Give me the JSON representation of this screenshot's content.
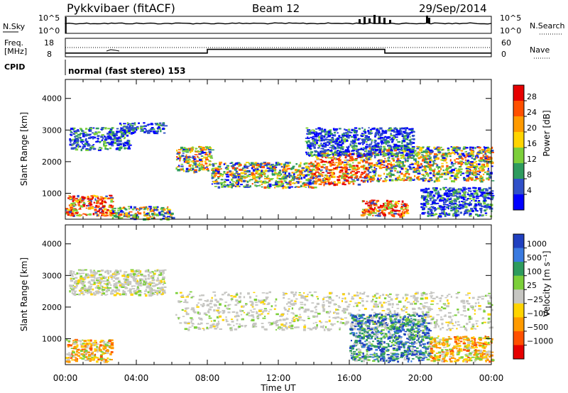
{
  "header": {
    "radar": "Pykkvibaer (fitACF)",
    "beam": "Beam 12",
    "date": "29/Sep/2014"
  },
  "nsky_panel": {
    "left_label": "N.Sky",
    "left_top_tick": "10^5",
    "left_bottom_tick": "10^0",
    "right_label": "N.Search",
    "right_top_tick": "10^5",
    "right_bottom_tick": "10^0"
  },
  "freq_panel": {
    "left_label_line1": "Freq.",
    "left_label_line2": "[MHz]",
    "left_top_tick": "18",
    "left_bottom_tick": "8",
    "right_label": "Nave",
    "right_top_tick": "60",
    "right_bottom_tick": "0"
  },
  "cpid_panel": {
    "label": "CPID",
    "text": "normal (fast stereo) 153"
  },
  "power_panel": {
    "ylabel": "Slant Range [km]",
    "cbar_label": "Power [dB]",
    "cbar_ticks": [
      "28",
      "24",
      "20",
      "16",
      "12",
      "8",
      "4"
    ],
    "cbar_colors": [
      "#e60000",
      "#ff5000",
      "#ff9a00",
      "#ffd400",
      "#7ccf3a",
      "#2e9b5e",
      "#3050c8",
      "#0000ff"
    ]
  },
  "velocity_panel": {
    "ylabel": "Slant Range [km]",
    "cbar_label": "Velocity [m s⁻¹]",
    "cbar_ticks": [
      "1000",
      "500",
      "100",
      "25",
      "−25",
      "−100",
      "−500",
      "−1000"
    ],
    "cbar_colors": [
      "#2040c0",
      "#3a7ae0",
      "#2e9b5e",
      "#7ccf3a",
      "#c6c6c2",
      "#ffd400",
      "#ff9a00",
      "#ff5000",
      "#e60000"
    ]
  },
  "y_ticks": [
    "4000",
    "3000",
    "2000",
    "1000"
  ],
  "x_ticks": [
    "00:00",
    "04:00",
    "08:00",
    "12:00",
    "16:00",
    "20:00",
    "00:00"
  ],
  "xlabel": "Time UT",
  "chart_data": {
    "type": "heatmap",
    "x_unit": "hours UT",
    "x_range": [
      0,
      24
    ],
    "y_range": [
      180,
      4600
    ],
    "frequency_steps": [
      {
        "start_hour": 0,
        "end_hour": 8,
        "mhz": 10
      },
      {
        "start_hour": 8,
        "end_hour": 18,
        "mhz": 12
      },
      {
        "start_hour": 18,
        "end_hour": 24,
        "mhz": 10
      }
    ],
    "nave_level": 30,
    "power_bands": [
      {
        "start_hour": 0.2,
        "end_hour": 3.6,
        "range_lo": 2400,
        "range_hi": 3100,
        "level": "low"
      },
      {
        "start_hour": 3.0,
        "end_hour": 5.6,
        "range_lo": 2900,
        "range_hi": 3250,
        "level": "low"
      },
      {
        "start_hour": 0.0,
        "end_hour": 2.6,
        "range_lo": 300,
        "range_hi": 950,
        "level": "high"
      },
      {
        "start_hour": 2.6,
        "end_hour": 6.0,
        "range_lo": 200,
        "range_hi": 600,
        "level": "medium"
      },
      {
        "start_hour": 6.2,
        "end_hour": 8.2,
        "range_lo": 1700,
        "range_hi": 2500,
        "level": "medium"
      },
      {
        "start_hour": 8.2,
        "end_hour": 14.0,
        "range_lo": 1200,
        "range_hi": 2000,
        "level": "medium"
      },
      {
        "start_hour": 14.0,
        "end_hour": 17.0,
        "range_lo": 1300,
        "range_hi": 2300,
        "level": "high"
      },
      {
        "start_hour": 17.0,
        "end_hour": 24.0,
        "range_lo": 1400,
        "range_hi": 2500,
        "level": "medium"
      },
      {
        "start_hour": 13.5,
        "end_hour": 19.6,
        "range_lo": 2200,
        "range_hi": 3100,
        "level": "low"
      },
      {
        "start_hour": 16.6,
        "end_hour": 19.2,
        "range_lo": 300,
        "range_hi": 800,
        "level": "high"
      },
      {
        "start_hour": 20.0,
        "end_hour": 24.0,
        "range_lo": 300,
        "range_hi": 1200,
        "level": "low"
      }
    ],
    "velocity_bands": [
      {
        "start_hour": 0.2,
        "end_hour": 5.6,
        "range_lo": 2400,
        "range_hi": 3200,
        "category": "near-zero"
      },
      {
        "start_hour": 6.2,
        "end_hour": 24.0,
        "range_lo": 1300,
        "range_hi": 2500,
        "category": "near-zero"
      },
      {
        "start_hour": 0.0,
        "end_hour": 2.6,
        "range_lo": 300,
        "range_hi": 1000,
        "category": "negative"
      },
      {
        "start_hour": 16.0,
        "end_hour": 20.5,
        "range_lo": 300,
        "range_hi": 1800,
        "category": "positive"
      },
      {
        "start_hour": 20.5,
        "end_hour": 24.0,
        "range_lo": 300,
        "range_hi": 1100,
        "category": "negative"
      }
    ]
  }
}
